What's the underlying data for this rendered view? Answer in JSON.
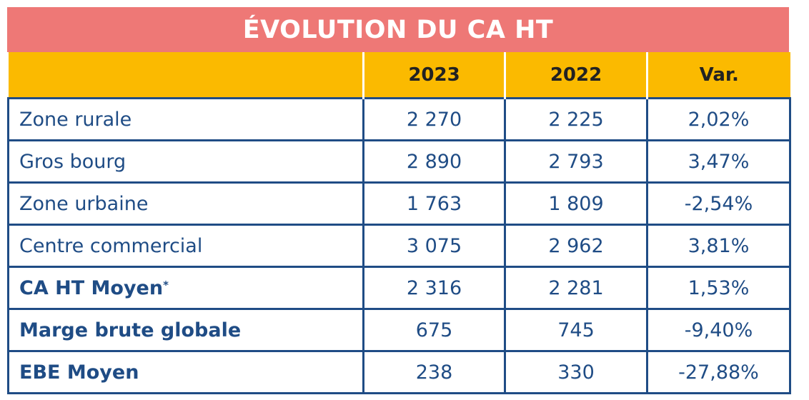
{
  "title": "ÉVOLUTION DU CA HT",
  "columns": [
    "",
    "2023",
    "2022",
    "Var."
  ],
  "rows": [
    {
      "label": "Zone rurale",
      "y2023": "2 270",
      "y2022": "2 225",
      "var": "2,02%",
      "bold": false
    },
    {
      "label": "Gros bourg",
      "y2023": "2 890",
      "y2022": "2 793",
      "var": "3,47%",
      "bold": false
    },
    {
      "label": "Zone urbaine",
      "y2023": "1 763",
      "y2022": "1 809",
      "var": "-2,54%",
      "bold": false
    },
    {
      "label": "Centre commercial",
      "y2023": "3 075",
      "y2022": "2 962",
      "var": "3,81%",
      "bold": false
    },
    {
      "label": "CA HT Moyen",
      "sup": "*",
      "y2023": "2 316",
      "y2022": "2 281",
      "var": "1,53%",
      "bold": true
    },
    {
      "label": "Marge brute globale",
      "y2023": "675",
      "y2022": "745",
      "var": "-9,40%",
      "bold": true
    },
    {
      "label": "EBE Moyen",
      "y2023": "238",
      "y2022": "330",
      "var": "-27,88%",
      "bold": true
    }
  ],
  "colors": {
    "title_bg": "#EE7876",
    "header_bg": "#FBBA00",
    "text": "#1F4C85",
    "border": "#1F4C85"
  }
}
